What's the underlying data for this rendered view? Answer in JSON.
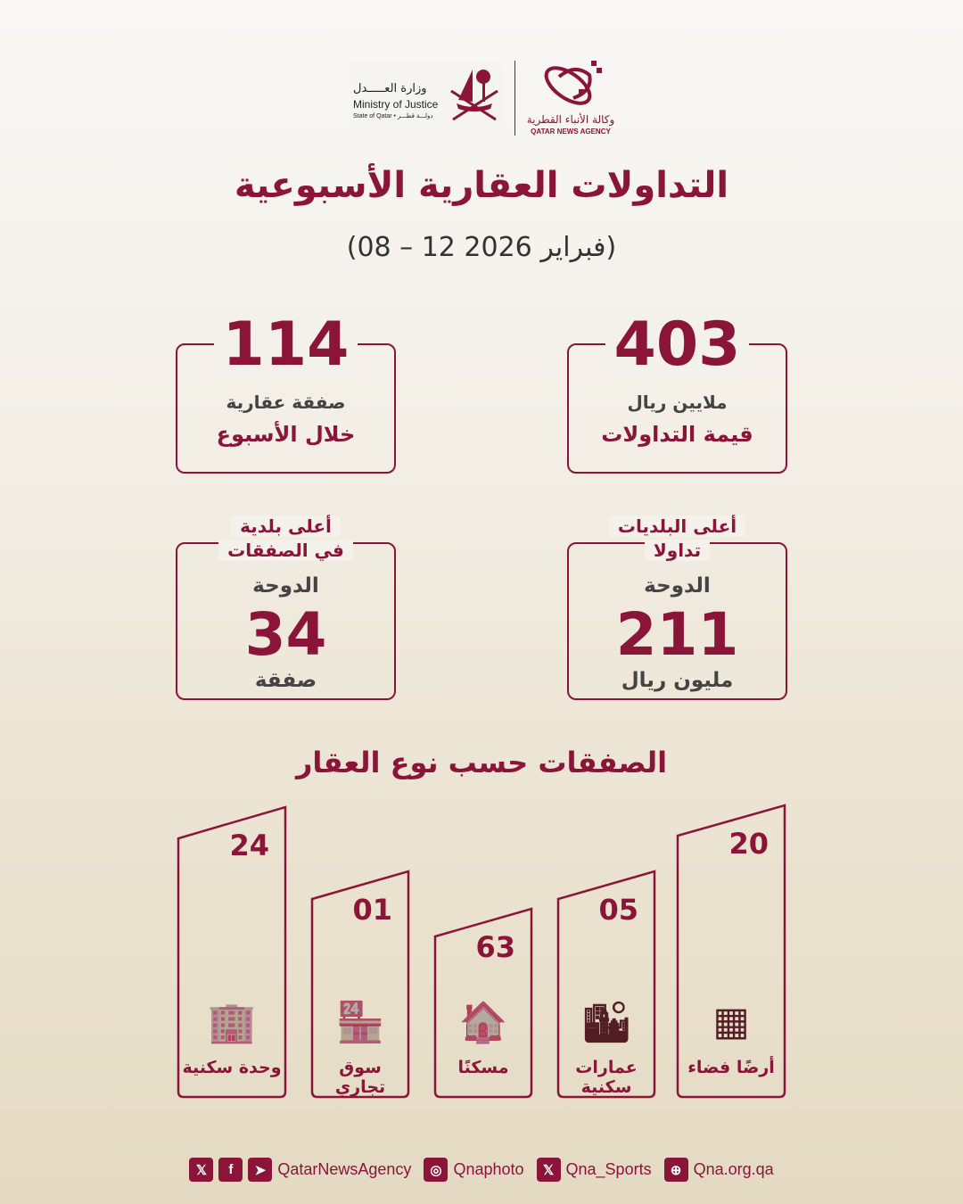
{
  "header": {
    "moj_ar": "وزارة العـــــدل",
    "moj_en": "Ministry of Justice",
    "moj_sub": "State of Qatar • دولـــة قطـــر",
    "qna_ar": "وكالة الأنباء القطرية",
    "qna_en": "QATAR NEWS AGENCY"
  },
  "title": "التداولات العقارية الأسبوعية",
  "date": "(08 – 12 فبراير 2026)",
  "accent_color": "#8a1538",
  "cards": [
    {
      "number": "403",
      "sub": "ملايين ريال",
      "label": "قيمة التداولات"
    },
    {
      "number": "114",
      "sub": "صفقة عقارية",
      "label": "خلال الأسبوع"
    },
    {
      "heading1": "أعلى البلديات",
      "heading2": "تداولا",
      "place": "الدوحة",
      "number": "211",
      "unit": "مليون ريال"
    },
    {
      "heading1": "أعلى بلدية",
      "heading2": "في الصفقات",
      "place": "الدوحة",
      "number": "34",
      "unit": "صفقة"
    }
  ],
  "types_title": "الصفقات حسب نوع العقار",
  "types": [
    {
      "value": "24",
      "label": "وحدة سكنية",
      "icon": "apartment-building-icon"
    },
    {
      "value": "01",
      "label": "سوق تجاري",
      "icon": "shop-icon"
    },
    {
      "value": "63",
      "label": "مسكنًا",
      "icon": "house-icon"
    },
    {
      "value": "05",
      "label": "عمارات سكنية",
      "icon": "residential-towers-icon"
    },
    {
      "value": "20",
      "label": "أرضًا فضاء",
      "icon": "land-layers-icon"
    }
  ],
  "footer": {
    "main_handle": "QatarNewsAgency",
    "instagram": "Qnaphoto",
    "sports": "Qna_Sports",
    "website": "Qna.org.qa"
  }
}
